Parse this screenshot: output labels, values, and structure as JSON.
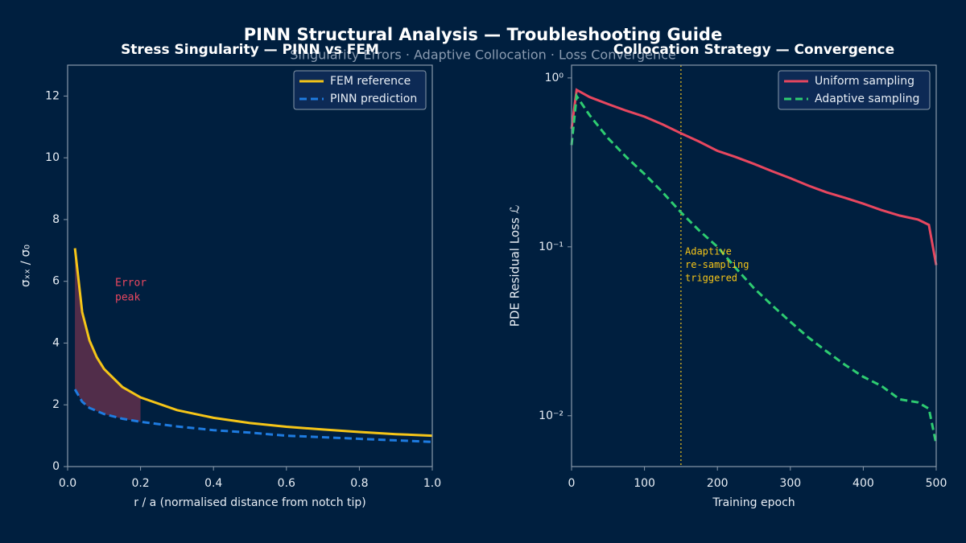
{
  "title": "PINN Structural Analysis — Troubleshooting Guide",
  "subtitle": "Singularity Errors  ·  Adaptive Collocation  ·  Loss Convergence",
  "chart_data": [
    {
      "type": "line",
      "title": "Stress Singularity — PINN vs FEM",
      "x_label": "r / a  (normalised distance from notch tip)",
      "y_label": "σₓₓ / σ₀",
      "x": [
        0.02,
        0.04,
        0.06,
        0.08,
        0.1,
        0.15,
        0.2,
        0.3,
        0.4,
        0.5,
        0.6,
        0.7,
        0.8,
        0.9,
        1.0
      ],
      "series": [
        {
          "name": "FEM reference",
          "color": "#f5c518",
          "linestyle": "solid",
          "values": [
            7.07,
            5.0,
            4.08,
            3.54,
            3.16,
            2.58,
            2.24,
            1.83,
            1.58,
            1.41,
            1.29,
            1.2,
            1.12,
            1.05,
            1.0
          ]
        },
        {
          "name": "PINN prediction",
          "color": "#1e7be0",
          "linestyle": "dashed",
          "values": [
            2.5,
            2.1,
            1.9,
            1.8,
            1.7,
            1.55,
            1.45,
            1.3,
            1.18,
            1.1,
            1.0,
            0.95,
            0.9,
            0.85,
            0.8
          ]
        }
      ],
      "fill_between": {
        "xlim": [
          0.02,
          0.2
        ],
        "color": "#e8475f"
      },
      "annotation": [
        "Error",
        "peak"
      ],
      "annotation_color": "#e8475f",
      "xlim": [
        0,
        1
      ],
      "ylim": [
        0,
        13
      ],
      "xticks": [
        {
          "value": 0,
          "label": "0.0"
        },
        0.2,
        0.4,
        0.6,
        0.8,
        {
          "value": 1,
          "label": "1.0"
        }
      ],
      "yticks": [
        0,
        2,
        4,
        6,
        8,
        10,
        12
      ],
      "legend": "upper right"
    },
    {
      "type": "line",
      "title": "Collocation Strategy — Convergence",
      "x_label": "Training epoch",
      "y_label": "PDE Residual Loss  ℒ",
      "x": [
        0,
        7,
        25,
        50,
        75,
        100,
        125,
        150,
        175,
        200,
        225,
        250,
        275,
        300,
        325,
        350,
        375,
        400,
        425,
        450,
        475,
        490,
        500
      ],
      "series": [
        {
          "name": "Uniform sampling",
          "color": "#e8475f",
          "linestyle": "solid",
          "values": [
            0.5,
            0.85,
            0.77,
            0.7,
            0.64,
            0.59,
            0.53,
            0.47,
            0.42,
            0.37,
            0.34,
            0.31,
            0.28,
            0.255,
            0.23,
            0.21,
            0.195,
            0.18,
            0.165,
            0.153,
            0.145,
            0.135,
            0.078
          ]
        },
        {
          "name": "Adaptive sampling",
          "color": "#2ecc71",
          "linestyle": "dashed",
          "values": [
            0.4,
            0.78,
            0.6,
            0.44,
            0.34,
            0.27,
            0.21,
            0.16,
            0.125,
            0.1,
            0.075,
            0.057,
            0.045,
            0.036,
            0.029,
            0.024,
            0.02,
            0.017,
            0.015,
            0.0125,
            0.012,
            0.011,
            0.0068
          ]
        }
      ],
      "vlines": [
        150
      ],
      "vline_color": "#f5c518",
      "annotation": [
        "Adaptive",
        "re-sampling",
        "triggered"
      ],
      "annotation_color": "#f5c518",
      "log_y": true,
      "xlim": [
        0,
        500
      ],
      "ylim": [
        0.005,
        1.19
      ],
      "xticks": [
        0,
        100,
        200,
        300,
        400,
        500
      ],
      "yticks": [
        {
          "value": 1,
          "label": "10⁰"
        },
        {
          "value": 0.1,
          "label": "10⁻¹"
        },
        {
          "value": 0.01,
          "label": "10⁻²"
        }
      ],
      "legend": "upper right"
    }
  ]
}
